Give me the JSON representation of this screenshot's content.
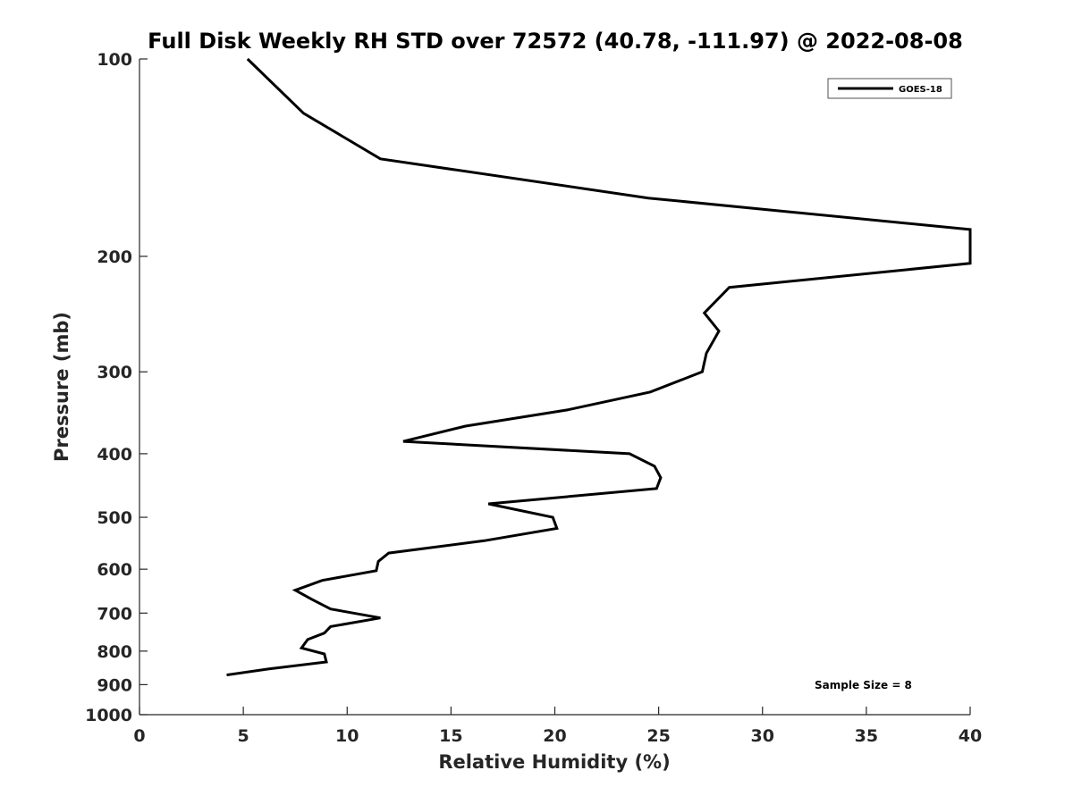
{
  "chart_data": {
    "type": "line",
    "title": "Full Disk Weekly RH STD over 72572 (40.78, -111.97) @ 2022-08-08",
    "xlabel": "Relative Humidity (%)",
    "ylabel": "Pressure (mb)",
    "xlim": [
      0,
      40
    ],
    "ylim": [
      1000,
      100
    ],
    "y_scale": "log",
    "x_ticks": [
      0,
      5,
      10,
      15,
      20,
      25,
      30,
      35,
      40
    ],
    "y_ticks": [
      100,
      200,
      300,
      400,
      500,
      600,
      700,
      800,
      900,
      1000
    ],
    "grid": false,
    "legend_position": "top-right",
    "annotation": "Sample Size = 8",
    "series": [
      {
        "name": "GOES-18",
        "color": "#000000",
        "points": [
          [
            5.2,
            100
          ],
          [
            7.9,
            121
          ],
          [
            11.6,
            142
          ],
          [
            24.5,
            163
          ],
          [
            40.0,
            182
          ],
          [
            40.0,
            205
          ],
          [
            28.4,
            223
          ],
          [
            27.2,
            244
          ],
          [
            27.9,
            260
          ],
          [
            27.3,
            281
          ],
          [
            27.1,
            300
          ],
          [
            24.6,
            322
          ],
          [
            20.6,
            343
          ],
          [
            15.7,
            363
          ],
          [
            12.7,
            383
          ],
          [
            23.6,
            400
          ],
          [
            24.8,
            418
          ],
          [
            25.1,
            435
          ],
          [
            24.9,
            452
          ],
          [
            16.8,
            477
          ],
          [
            19.9,
            500
          ],
          [
            20.1,
            520
          ],
          [
            16.6,
            543
          ],
          [
            12.0,
            567
          ],
          [
            11.5,
            584
          ],
          [
            11.4,
            603
          ],
          [
            8.8,
            624
          ],
          [
            7.5,
            646
          ],
          [
            8.3,
            667
          ],
          [
            9.2,
            690
          ],
          [
            11.6,
            712
          ],
          [
            9.2,
            734
          ],
          [
            8.9,
            751
          ],
          [
            8.1,
            768
          ],
          [
            7.8,
            791
          ],
          [
            8.9,
            808
          ],
          [
            9.0,
            831
          ],
          [
            6.2,
            852
          ],
          [
            4.2,
            870
          ]
        ]
      }
    ]
  }
}
